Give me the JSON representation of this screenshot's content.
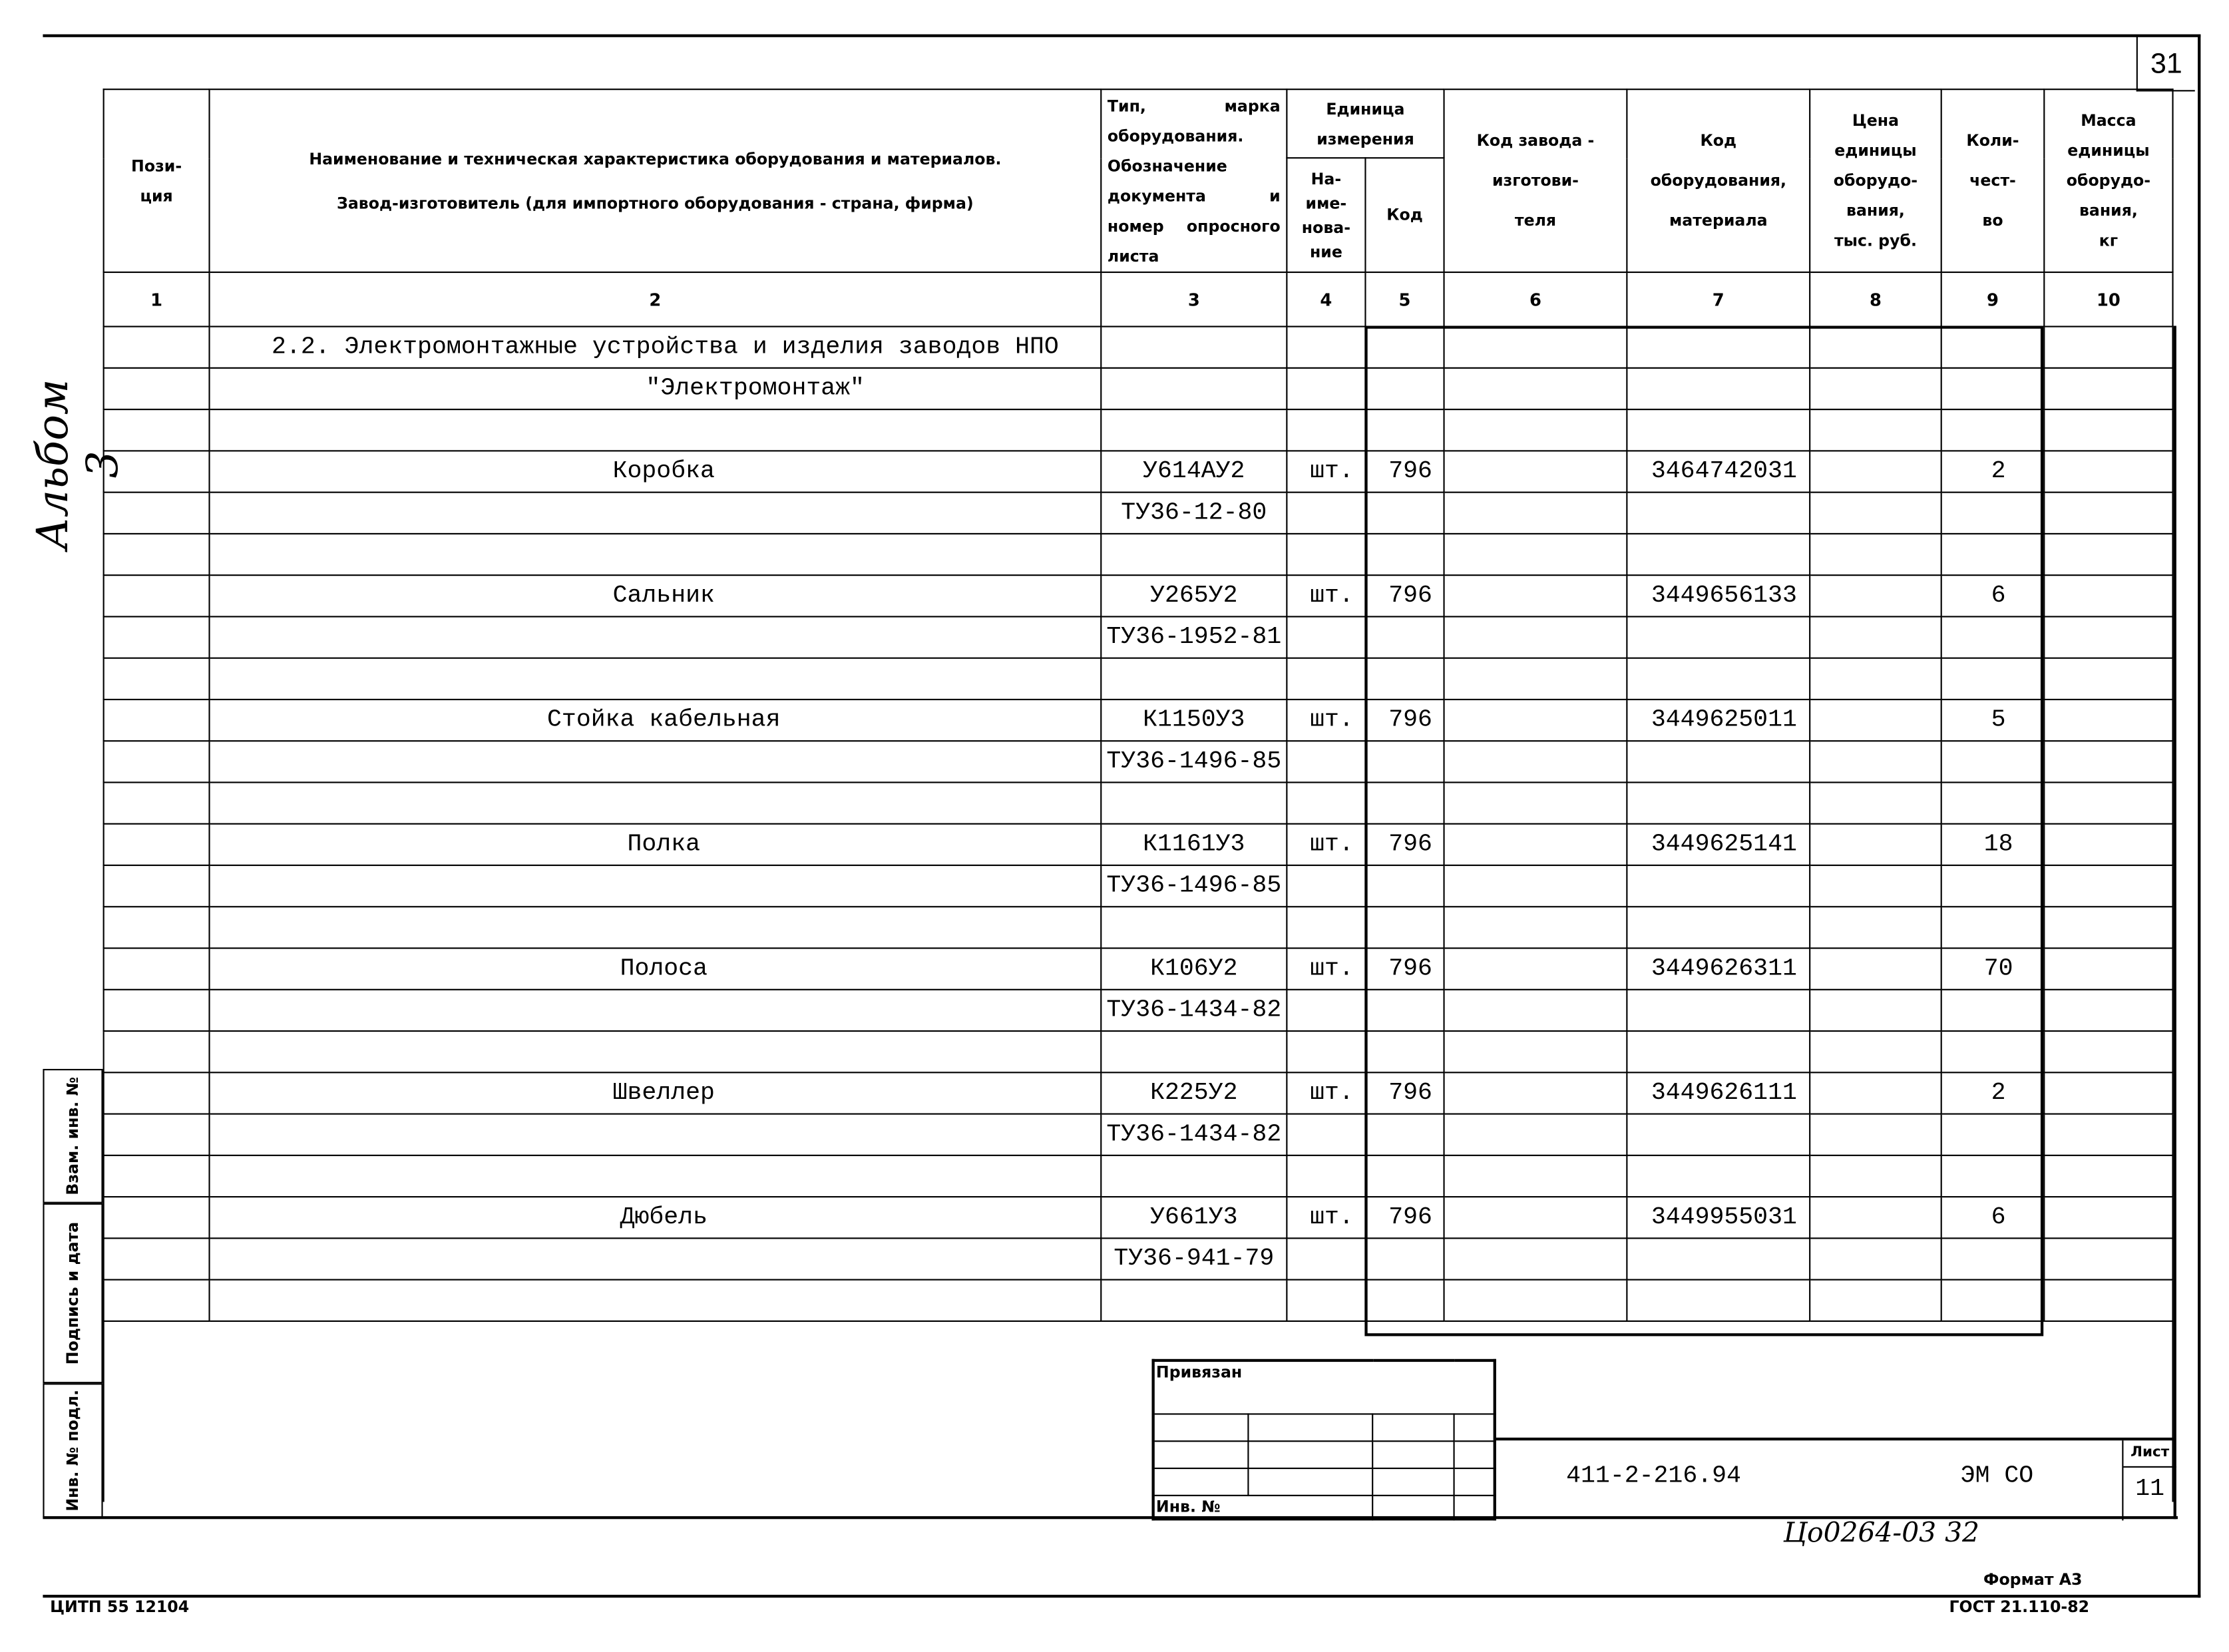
{
  "sheet_corner_number": "31",
  "album_label": "Альбом 3",
  "header": {
    "col1": "Пози-\nция",
    "col2_line1": "Наименование и техническая характеристика  оборудования и материалов.",
    "col2_line2": "Завод-изготовитель  (для импортного оборудования -  страна, фирма)",
    "col3": "Тип,  марка оборудования. Обозначение документа и номер опросного листа",
    "unit_group": "Единица измерения",
    "col4": "На-\nиме-\nнова-\nние",
    "col5": "Код",
    "col6": "Код завода -\nизготови-\nтеля",
    "col7": "Код\nоборудования,\nматериала",
    "col8": "Цена\nединицы\nоборудо-\nвания,\nтыс. руб.",
    "col9": "Коли-\nчест-\nво",
    "col10": "Масса\nединицы\nоборудо-\nвания,\nкг"
  },
  "column_numbers": [
    "1",
    "2",
    "3",
    "4",
    "5",
    "6",
    "7",
    "8",
    "9",
    "10"
  ],
  "section_title": "2.2. Электромонтажные устройства и изделия заводов НПО",
  "section_subtitle": "\"Электромонтаж\"",
  "items": [
    {
      "name": "Коробка",
      "type": "У614АУ2",
      "doc": "ТУ36-12-80",
      "unit": "шт.",
      "unit_code": "796",
      "code": "3464742031",
      "qty": "2"
    },
    {
      "name": "Сальник",
      "type": "У265У2",
      "doc": "ТУ36-1952-81",
      "unit": "шт.",
      "unit_code": "796",
      "code": "3449656133",
      "qty": "6"
    },
    {
      "name": "Стойка кабельная",
      "type": "К1150У3",
      "doc": "ТУ36-1496-85",
      "unit": "шт.",
      "unit_code": "796",
      "code": "3449625011",
      "qty": "5"
    },
    {
      "name": "Полка",
      "type": "К1161У3",
      "doc": "ТУ36-1496-85",
      "unit": "шт.",
      "unit_code": "796",
      "code": "3449625141",
      "qty": "18"
    },
    {
      "name": "Полоса",
      "type": "К106У2",
      "doc": "ТУ36-1434-82",
      "unit": "шт.",
      "unit_code": "796",
      "code": "3449626311",
      "qty": "70"
    },
    {
      "name": "Швеллер",
      "type": "К225У2",
      "doc": "ТУ36-1434-82",
      "unit": "шт.",
      "unit_code": "796",
      "code": "3449626111",
      "qty": "2"
    },
    {
      "name": "Дюбель",
      "type": "У661У3",
      "doc": "ТУ36-941-79",
      "unit": "шт.",
      "unit_code": "796",
      "code": "3449955031",
      "qty": "6"
    }
  ],
  "side_labels": {
    "replace": "Взам. инв. №",
    "signature": "Подпись и дата",
    "inv": "Инв. № подл."
  },
  "stamp": {
    "linked": "Привязан",
    "inv_no": "Инв. №",
    "doc_code": "411-2-216.94",
    "doc_type": "ЭМ СО",
    "sheet_label": "Лист",
    "sheet_no": "11"
  },
  "handwritten_note": "Цо0264-03  32",
  "footer": {
    "left": "ЦИТП  55  12104",
    "format": "Формат А3",
    "standard": "ГОСТ 21.110-82"
  }
}
